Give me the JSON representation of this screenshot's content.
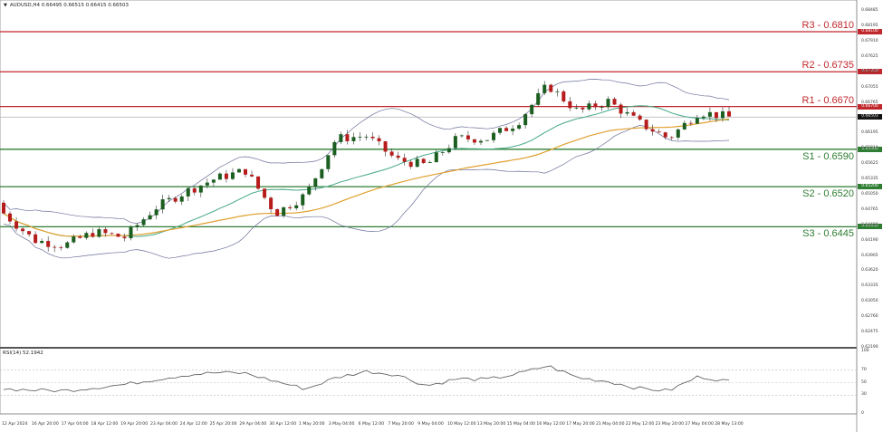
{
  "header": {
    "symbol_line": "AUDUSD,H4  0.66495 0.66515 0.66415 0.66503",
    "dropdown_icon": "triangle-down-icon"
  },
  "colors": {
    "resistance": "#c0282d",
    "support": "#2e7d32",
    "bull_candle": "#1b5e20",
    "bear_candle": "#b71c1c",
    "bollinger": "#6b6f9a",
    "ma_green": "#4caf8a",
    "ma_orange": "#e0a030",
    "current_price_line": "#b0b0b0",
    "current_price_badge": "#111111"
  },
  "levels": [
    {
      "name": "R3",
      "label": "R3 - 0.6810",
      "price": 0.681,
      "badge": "0.68100",
      "type": "resistance"
    },
    {
      "name": "R2",
      "label": "R2 - 0.6735",
      "price": 0.6735,
      "badge": "0.67350",
      "type": "resistance"
    },
    {
      "name": "R1",
      "label": "R1 - 0.6670",
      "price": 0.667,
      "badge": "0.66700",
      "type": "resistance"
    },
    {
      "name": "S1",
      "label": "S1 - 0.6590",
      "price": 0.659,
      "badge": "0.65900",
      "type": "support"
    },
    {
      "name": "S2",
      "label": "S2 - 0.6520",
      "price": 0.652,
      "badge": "0.65200",
      "type": "support"
    },
    {
      "name": "S3",
      "label": "S3 - 0.6445",
      "price": 0.6445,
      "badge": "0.64450",
      "type": "support"
    }
  ],
  "current_price": {
    "value": 0.66503,
    "badge": "0.66503"
  },
  "price_axis_ticks": [
    "0.68485",
    "0.68195",
    "0.67910",
    "0.67625",
    "0.67335",
    "0.67055",
    "0.66765",
    "0.66480",
    "0.66195",
    "0.65910",
    "0.65625",
    "0.65335",
    "0.65050",
    "0.64765",
    "0.64480",
    "0.64190",
    "0.63905",
    "0.63620",
    "0.63335",
    "0.63050",
    "0.62760",
    "0.62475",
    "0.62190"
  ],
  "rsi": {
    "label": "RSI(14) 52.1942",
    "axis_ticks": [
      "100",
      "70",
      "50",
      "30",
      "0"
    ],
    "levels": [
      70,
      50,
      30
    ]
  },
  "time_axis": [
    "12 Apr 2024",
    "16 Apr 20:00",
    "17 Apr 04:00",
    "18 Apr 12:00",
    "19 Apr 20:00",
    "23 Apr 04:00",
    "24 Apr 12:00",
    "25 Apr 20:00",
    "29 Apr 04:00",
    "30 Apr 12:00",
    "1 May 20:00",
    "3 May 04:00",
    "6 May 12:00",
    "7 May 20:00",
    "9 May 04:00",
    "10 May 12:00",
    "13 May 20:00",
    "15 May 04:00",
    "16 May 12:00",
    "17 May 20:00",
    "21 May 04:00",
    "22 May 12:00",
    "23 May 20:00",
    "27 May 04:00",
    "28 May 13:00"
  ],
  "chart_data": {
    "type": "line",
    "title": "AUDUSD,H4",
    "subtitle": "O 0.66495 H 0.66515 L 0.66415 C 0.66503",
    "xlabel": "",
    "ylabel": "",
    "ylim": [
      0.6219,
      0.687
    ],
    "grid": false,
    "legend_position": "none",
    "x": [
      "12 Apr 2024",
      "16 Apr 20:00",
      "17 Apr 04:00",
      "18 Apr 12:00",
      "19 Apr 20:00",
      "23 Apr 04:00",
      "24 Apr 12:00",
      "25 Apr 20:00",
      "29 Apr 04:00",
      "30 Apr 12:00",
      "1 May 20:00",
      "3 May 04:00",
      "6 May 12:00",
      "7 May 20:00",
      "9 May 04:00",
      "10 May 12:00",
      "13 May 20:00",
      "15 May 04:00",
      "16 May 12:00",
      "17 May 20:00",
      "21 May 04:00",
      "22 May 12:00",
      "23 May 20:00",
      "27 May 04:00",
      "28 May 13:00"
    ],
    "series": [
      {
        "name": "AUDUSD close (approx.)",
        "values": [
          0.647,
          0.642,
          0.641,
          0.6435,
          0.6425,
          0.648,
          0.651,
          0.6535,
          0.655,
          0.647,
          0.6505,
          0.661,
          0.6615,
          0.657,
          0.656,
          0.661,
          0.661,
          0.664,
          0.671,
          0.666,
          0.668,
          0.664,
          0.661,
          0.666,
          0.665
        ]
      },
      {
        "name": "RSI(14)",
        "values": [
          40,
          38,
          37,
          42,
          47,
          55,
          62,
          66,
          65,
          52,
          40,
          58,
          68,
          63,
          45,
          56,
          55,
          64,
          77,
          58,
          52,
          41,
          37,
          60,
          52
        ]
      }
    ],
    "annotations": [
      "R3 - 0.6810",
      "R2 - 0.6735",
      "R1 - 0.6670",
      "S1 - 0.6590",
      "S2 - 0.6520",
      "S3 - 0.6445"
    ],
    "indicators": [
      "Bollinger Bands",
      "Moving Average (green)",
      "Moving Average (orange)",
      "RSI(14) 52.1942"
    ]
  }
}
